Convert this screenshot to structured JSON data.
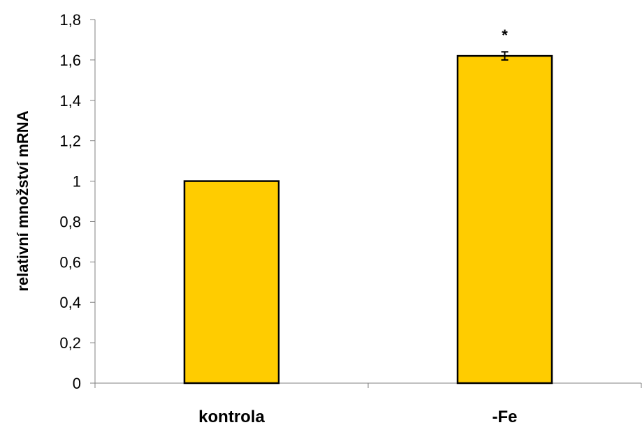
{
  "chart_data": {
    "type": "bar",
    "categories": [
      "kontrola",
      "-Fe"
    ],
    "values": [
      1.0,
      1.62
    ],
    "error": [
      null,
      0.02
    ],
    "annotations": [
      "",
      "*"
    ],
    "xlabel": "",
    "ylabel": "relativní množství mRNA",
    "ylim": [
      0,
      1.8
    ],
    "yticks": [
      0,
      0.2,
      0.4,
      0.6,
      0.8,
      1,
      1.2,
      1.4,
      1.6,
      1.8
    ],
    "ytick_labels": [
      "0",
      "0,2",
      "0,4",
      "0,6",
      "0,8",
      "1",
      "1,2",
      "1,4",
      "1,6",
      "1,8"
    ],
    "grid": false,
    "legend": "none",
    "colors": {
      "bar_fill": "#FFCC00",
      "bar_stroke": "#000000",
      "axis": "#808080"
    }
  }
}
